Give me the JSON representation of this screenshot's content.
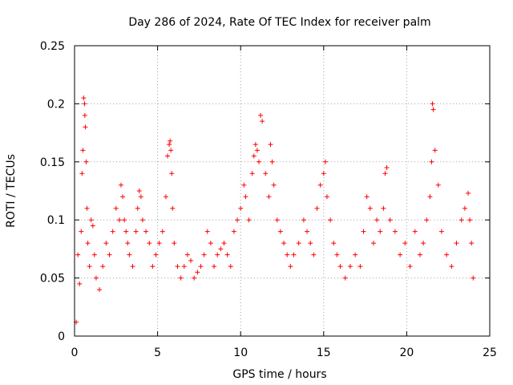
{
  "chart_data": {
    "type": "scatter",
    "title": "Day 286 of 2024, Rate Of TEC Index for receiver palm",
    "xlabel": "GPS time / hours",
    "ylabel": "ROTI / TECUs",
    "xlim": [
      0,
      25
    ],
    "ylim": [
      0,
      0.25
    ],
    "xticks": [
      0,
      5,
      10,
      15,
      20,
      25
    ],
    "xtick_labels": [
      "0",
      "5",
      "10",
      "15",
      "20",
      "25"
    ],
    "yticks": [
      0,
      0.05,
      0.1,
      0.15,
      0.2,
      0.25
    ],
    "ytick_labels": [
      "0",
      "0.05",
      "0.1",
      "0.15",
      "0.2",
      "0.25"
    ],
    "grid": true,
    "marker": "plus",
    "color": "#ff0000",
    "series": [
      {
        "name": "ROTI",
        "x": [
          0.1,
          0.2,
          0.3,
          0.4,
          0.45,
          0.5,
          0.55,
          0.6,
          0.62,
          0.65,
          0.7,
          0.75,
          0.8,
          0.9,
          1.0,
          1.1,
          1.2,
          1.3,
          1.5,
          1.7,
          1.9,
          2.1,
          2.3,
          2.5,
          2.7,
          2.8,
          2.9,
          3.0,
          3.1,
          3.2,
          3.3,
          3.5,
          3.7,
          3.8,
          3.9,
          4.0,
          4.1,
          4.3,
          4.5,
          4.7,
          4.9,
          5.1,
          5.3,
          5.5,
          5.6,
          5.7,
          5.75,
          5.8,
          5.85,
          5.9,
          6.0,
          6.2,
          6.4,
          6.6,
          6.8,
          7.0,
          7.2,
          7.4,
          7.6,
          7.8,
          8.0,
          8.2,
          8.4,
          8.6,
          8.8,
          9.0,
          9.2,
          9.4,
          9.6,
          9.8,
          10.0,
          10.2,
          10.3,
          10.5,
          10.7,
          10.8,
          10.9,
          11.0,
          11.1,
          11.2,
          11.3,
          11.5,
          11.7,
          11.8,
          11.9,
          12.0,
          12.2,
          12.4,
          12.6,
          12.8,
          13.0,
          13.2,
          13.5,
          13.8,
          14.0,
          14.2,
          14.4,
          14.6,
          14.8,
          15.0,
          15.1,
          15.2,
          15.4,
          15.6,
          15.8,
          16.0,
          16.3,
          16.6,
          16.9,
          17.2,
          17.4,
          17.6,
          17.8,
          18.0,
          18.2,
          18.4,
          18.6,
          18.7,
          18.8,
          19.0,
          19.3,
          19.6,
          19.9,
          20.2,
          20.5,
          20.8,
          21.0,
          21.2,
          21.4,
          21.5,
          21.55,
          21.6,
          21.7,
          21.9,
          22.1,
          22.4,
          22.7,
          23.0,
          23.3,
          23.5,
          23.7,
          23.8,
          23.9,
          24.0
        ],
        "y": [
          0.012,
          0.07,
          0.045,
          0.09,
          0.14,
          0.16,
          0.205,
          0.2,
          0.19,
          0.18,
          0.15,
          0.11,
          0.08,
          0.06,
          0.1,
          0.095,
          0.07,
          0.05,
          0.04,
          0.06,
          0.08,
          0.07,
          0.09,
          0.11,
          0.1,
          0.13,
          0.12,
          0.1,
          0.09,
          0.08,
          0.07,
          0.06,
          0.09,
          0.11,
          0.125,
          0.12,
          0.1,
          0.09,
          0.08,
          0.06,
          0.07,
          0.08,
          0.09,
          0.12,
          0.155,
          0.165,
          0.168,
          0.16,
          0.14,
          0.11,
          0.08,
          0.06,
          0.05,
          0.06,
          0.07,
          0.065,
          0.05,
          0.055,
          0.06,
          0.07,
          0.09,
          0.08,
          0.06,
          0.07,
          0.075,
          0.08,
          0.07,
          0.06,
          0.09,
          0.1,
          0.11,
          0.13,
          0.12,
          0.1,
          0.14,
          0.155,
          0.165,
          0.16,
          0.15,
          0.19,
          0.185,
          0.14,
          0.12,
          0.165,
          0.15,
          0.13,
          0.1,
          0.09,
          0.08,
          0.07,
          0.06,
          0.07,
          0.08,
          0.1,
          0.09,
          0.08,
          0.07,
          0.11,
          0.13,
          0.14,
          0.15,
          0.12,
          0.1,
          0.08,
          0.07,
          0.06,
          0.05,
          0.06,
          0.07,
          0.06,
          0.09,
          0.12,
          0.11,
          0.08,
          0.1,
          0.09,
          0.11,
          0.14,
          0.145,
          0.1,
          0.09,
          0.07,
          0.08,
          0.06,
          0.09,
          0.07,
          0.08,
          0.1,
          0.12,
          0.15,
          0.2,
          0.195,
          0.16,
          0.13,
          0.09,
          0.07,
          0.06,
          0.08,
          0.1,
          0.11,
          0.123,
          0.1,
          0.08,
          0.05
        ]
      }
    ]
  }
}
